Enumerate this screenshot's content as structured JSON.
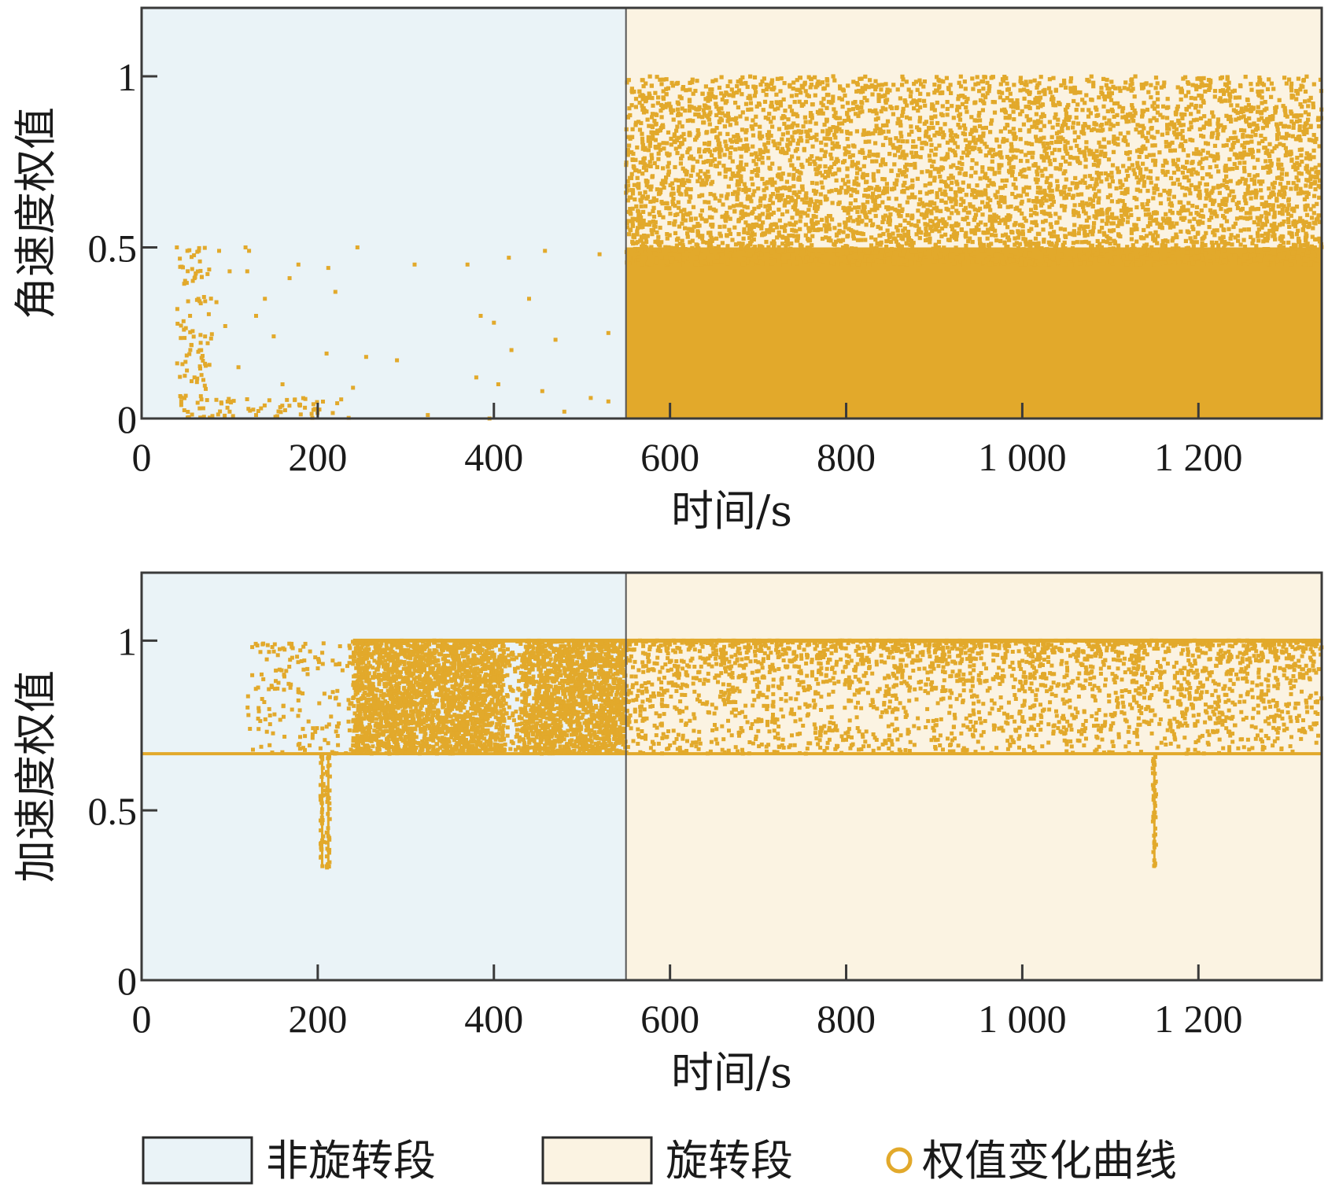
{
  "chart_data": [
    {
      "type": "scatter",
      "xlabel": "时间/s",
      "ylabel": "角速度权值",
      "xlim": [
        0,
        1340
      ],
      "ylim": [
        0,
        1.2
      ],
      "xticks": [
        0,
        200,
        400,
        600,
        800,
        1000,
        1200
      ],
      "xtick_labels": [
        "0",
        "200",
        "400",
        "600",
        "800",
        "1 000",
        "1 200"
      ],
      "yticks": [
        0,
        0.5,
        1
      ],
      "ytick_labels": [
        "0",
        "0.5",
        "1"
      ],
      "regions": [
        {
          "name": "非旋转段",
          "x": [
            0,
            550
          ],
          "color": "#eaf3f7"
        },
        {
          "name": "旋转段",
          "x": [
            550,
            1340
          ],
          "color": "#fbf3e2"
        }
      ],
      "divider_x": 550,
      "series": [
        {
          "name": "权值变化曲线",
          "description_points": [
            [
              40,
              0.5
            ],
            [
              52,
              0.49
            ],
            [
              65,
              0.49
            ],
            [
              88,
              0.49
            ],
            [
              118,
              0.5
            ],
            [
              122,
              0.49
            ],
            [
              100,
              0.43
            ],
            [
              120,
              0.43
            ],
            [
              178,
              0.45
            ],
            [
              212,
              0.44
            ],
            [
              245,
              0.5
            ],
            [
              310,
              0.45
            ],
            [
              370,
              0.45
            ],
            [
              417,
              0.47
            ],
            [
              458,
              0.49
            ],
            [
              520,
              0.48
            ],
            [
              60,
              0.41
            ],
            [
              85,
              0.34
            ],
            [
              140,
              0.35
            ],
            [
              168,
              0.41
            ],
            [
              220,
              0.37
            ],
            [
              385,
              0.3
            ],
            [
              400,
              0.28
            ],
            [
              440,
              0.35
            ],
            [
              55,
              0.3
            ],
            [
              95,
              0.27
            ],
            [
              130,
              0.3
            ],
            [
              75,
              0.22
            ],
            [
              150,
              0.24
            ],
            [
              210,
              0.19
            ],
            [
              255,
              0.18
            ],
            [
              290,
              0.17
            ],
            [
              420,
              0.2
            ],
            [
              470,
              0.23
            ],
            [
              530,
              0.25
            ],
            [
              60,
              0.12
            ],
            [
              110,
              0.15
            ],
            [
              160,
              0.1
            ],
            [
              240,
              0.09
            ],
            [
              380,
              0.12
            ],
            [
              405,
              0.1
            ],
            [
              455,
              0.08
            ],
            [
              510,
              0.06
            ],
            [
              45,
              0.05
            ],
            [
              70,
              0.03
            ],
            [
              100,
              0.02
            ],
            [
              130,
              0.01
            ],
            [
              180,
              0.04
            ],
            [
              325,
              0.01
            ],
            [
              395,
              0.0
            ],
            [
              480,
              0.02
            ],
            [
              530,
              0.05
            ]
          ]
        }
      ],
      "segment_stats": {
        "non_rotation": {
          "x_range": [
            40,
            550
          ],
          "y_range": [
            0,
            0.5
          ]
        },
        "rotation": {
          "x_range": [
            550,
            1340
          ],
          "y_range": [
            0,
            1.0
          ],
          "dense_below": 0.5
        }
      }
    },
    {
      "type": "scatter",
      "xlabel": "时间/s",
      "ylabel": "加速度权值",
      "xlim": [
        0,
        1340
      ],
      "ylim": [
        0,
        1.2
      ],
      "xticks": [
        0,
        200,
        400,
        600,
        800,
        1000,
        1200
      ],
      "xtick_labels": [
        "0",
        "200",
        "400",
        "600",
        "800",
        "1 000",
        "1 200"
      ],
      "yticks": [
        0,
        0.5,
        1
      ],
      "ytick_labels": [
        "0",
        "0.5",
        "1"
      ],
      "regions": [
        {
          "name": "非旋转段",
          "x": [
            0,
            550
          ],
          "color": "#eaf3f7"
        },
        {
          "name": "旋转段",
          "x": [
            550,
            1340
          ],
          "color": "#fbf3e2"
        }
      ],
      "divider_x": 550,
      "series": [
        {
          "name": "权值变化曲线",
          "baseline": 0.667,
          "upper_band": 1.0,
          "dips": [
            {
              "x": 205,
              "min": 0.33
            },
            {
              "x": 212,
              "min": 0.33
            },
            {
              "x": 1150,
              "min": 0.33
            }
          ],
          "scatter_ranges": [
            {
              "x": [
                120,
                240
              ],
              "y": [
                0.667,
                1.0
              ],
              "density": "sparse"
            },
            {
              "x": [
                240,
                550
              ],
              "y": [
                0.667,
                1.0
              ],
              "density": "dense"
            },
            {
              "x": [
                550,
                1340
              ],
              "y": [
                0.667,
                1.0
              ],
              "density": "medium"
            }
          ]
        }
      ]
    }
  ],
  "legend": {
    "items": [
      {
        "label": "非旋转段",
        "type": "patch",
        "color": "#eaf3f7"
      },
      {
        "label": "旋转段",
        "type": "patch",
        "color": "#fbf3e2"
      },
      {
        "label": "权值变化曲线",
        "type": "marker",
        "color": "#e2a92b"
      }
    ],
    "placement": "bottom"
  },
  "colors": {
    "point": "#e2a92b",
    "axis": "#3a3a3a",
    "non_rotation_bg": "#eaf3f7",
    "rotation_bg": "#fbf3e2"
  }
}
